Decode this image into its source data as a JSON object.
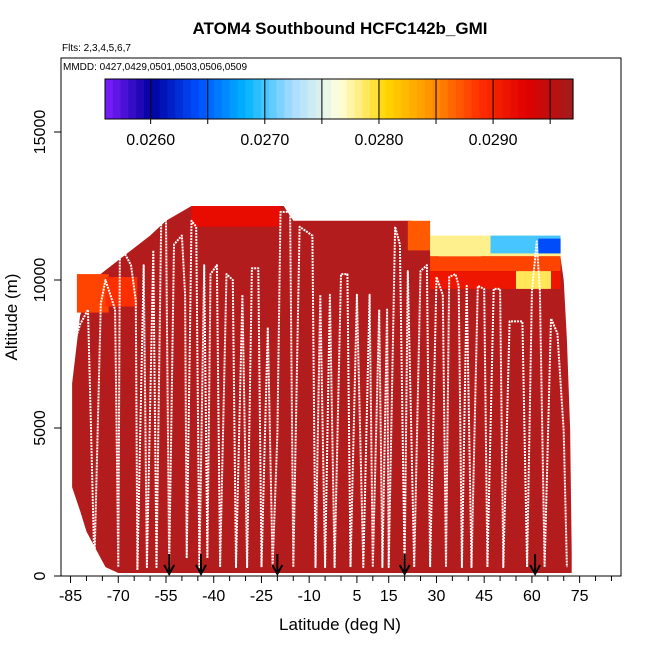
{
  "chart_data": {
    "type": "heatmap",
    "title": "ATOM4 Southbound HCFC142b_GMI",
    "subtitle_flights": "Flts: 2,3,4,5,6,7",
    "subtitle_dates": "MMDD: 0427,0429,0501,0503,0506,0509",
    "xlabel": "Latitude (deg N)",
    "ylabel": "Altitude (m)",
    "xlim": [
      -88,
      88
    ],
    "ylim": [
      0,
      17500
    ],
    "x_ticks": [
      -85,
      -70,
      -55,
      -40,
      -25,
      -10,
      5,
      15,
      30,
      45,
      60,
      75
    ],
    "x_tick_labels": [
      "-85",
      "-70",
      "-55",
      "-40",
      "-25",
      "-10",
      "5",
      "15",
      "30",
      "45",
      "60",
      "75"
    ],
    "y_ticks": [
      0,
      5000,
      10000,
      15000
    ],
    "y_tick_labels": [
      "0",
      "5000",
      "10000",
      "15000"
    ],
    "colorbar": {
      "range": [
        0.0256,
        0.0297
      ],
      "ticks": [
        0.026,
        0.027,
        0.028,
        0.029
      ],
      "tick_labels": [
        "0.0260",
        "0.0270",
        "0.0280",
        "0.0290"
      ],
      "colors": [
        "#7f1fff",
        "#00009f",
        "#0050ff",
        "#00b4ff",
        "#a8dcff",
        "#ffffe0",
        "#ffd700",
        "#ff9000",
        "#ff3000",
        "#e00000",
        "#a01c1c"
      ]
    },
    "curtain_top": [
      [
        -84.5,
        6500
      ],
      [
        -82,
        8800
      ],
      [
        -78,
        10000
      ],
      [
        -72,
        10500
      ],
      [
        -66,
        11000
      ],
      [
        -60,
        11500
      ],
      [
        -55,
        12000
      ],
      [
        -47,
        12500
      ],
      [
        -18,
        12500
      ],
      [
        -15,
        12000
      ],
      [
        22,
        12000
      ],
      [
        28,
        11000
      ],
      [
        35,
        10500
      ],
      [
        50,
        11000
      ],
      [
        68,
        11500
      ],
      [
        70,
        10000
      ],
      [
        71,
        8000
      ],
      [
        72,
        5000
      ],
      [
        72.5,
        800
      ]
    ],
    "curtain_bottom": [
      [
        -84.5,
        3000
      ],
      [
        -82,
        2200
      ],
      [
        -80,
        1500
      ],
      [
        -77,
        900
      ],
      [
        -74,
        300
      ],
      [
        -70,
        100
      ],
      [
        72.5,
        100
      ]
    ],
    "upper_bands": [
      {
        "x0": -83,
        "x1": -73,
        "y0": 8900,
        "y1": 10200,
        "value": 0.0288
      },
      {
        "x0": -74,
        "x1": -64,
        "y0": 9100,
        "y1": 10100,
        "value": 0.0289
      },
      {
        "x0": -47,
        "x1": -19,
        "y0": 11800,
        "y1": 12500,
        "value": 0.0292
      },
      {
        "x0": 21,
        "x1": 28,
        "y0": 11000,
        "y1": 12000,
        "value": 0.0287
      },
      {
        "x0": 28,
        "x1": 69,
        "y0": 10800,
        "y1": 11500,
        "value": 0.0278
      },
      {
        "x0": 47,
        "x1": 69,
        "y0": 10900,
        "y1": 11500,
        "value": 0.027
      },
      {
        "x0": 62,
        "x1": 69,
        "y0": 10900,
        "y1": 11400,
        "value": 0.0264
      },
      {
        "x0": 28,
        "x1": 69,
        "y0": 10300,
        "y1": 10800,
        "value": 0.0288
      },
      {
        "x0": 28,
        "x1": 69,
        "y0": 9700,
        "y1": 10300,
        "value": 0.0291
      },
      {
        "x0": 55,
        "x1": 66,
        "y0": 9700,
        "y1": 10300,
        "value": 0.0279
      }
    ],
    "flight_track": [
      [
        -84,
        7800
      ],
      [
        -82,
        8500
      ],
      [
        -79.5,
        9000
      ],
      [
        -77.5,
        400
      ],
      [
        -75.5,
        9200
      ],
      [
        -74,
        10000
      ],
      [
        -71,
        9000
      ],
      [
        -70,
        300
      ],
      [
        -69.5,
        11200
      ],
      [
        -66,
        10500
      ],
      [
        -64.5,
        9300
      ],
      [
        -64,
        200
      ],
      [
        -62,
        10500
      ],
      [
        -61,
        300
      ],
      [
        -59,
        11000
      ],
      [
        -58,
        300
      ],
      [
        -56.5,
        12000
      ],
      [
        -55,
        12000
      ],
      [
        -54,
        300
      ],
      [
        -52.5,
        11200
      ],
      [
        -50,
        11500
      ],
      [
        -49,
        9500
      ],
      [
        -48.5,
        600
      ],
      [
        -47.5,
        8000
      ],
      [
        -47,
        12000
      ],
      [
        -45.5,
        11800
      ],
      [
        -44.5,
        300
      ],
      [
        -43,
        10500
      ],
      [
        -42,
        600
      ],
      [
        -41,
        10200
      ],
      [
        -39,
        10500
      ],
      [
        -38,
        300
      ],
      [
        -36,
        10200
      ],
      [
        -34,
        10000
      ],
      [
        -33,
        300
      ],
      [
        -31,
        9500
      ],
      [
        -29.5,
        300
      ],
      [
        -28,
        10400
      ],
      [
        -26,
        10400
      ],
      [
        -25,
        300
      ],
      [
        -23,
        8400
      ],
      [
        -21.5,
        300
      ],
      [
        -20,
        4800
      ],
      [
        -19,
        12300
      ],
      [
        -16,
        12300
      ],
      [
        -15,
        300
      ],
      [
        -13,
        11800
      ],
      [
        -9,
        11500
      ],
      [
        -8,
        300
      ],
      [
        -6.5,
        9500
      ],
      [
        -5,
        300
      ],
      [
        -3.5,
        9500
      ],
      [
        -2,
        300
      ],
      [
        0,
        10200
      ],
      [
        2,
        10200
      ],
      [
        3,
        300
      ],
      [
        5,
        9500
      ],
      [
        7,
        300
      ],
      [
        9,
        9500
      ],
      [
        10,
        300
      ],
      [
        12,
        9000
      ],
      [
        13,
        300
      ],
      [
        14.5,
        9000
      ],
      [
        15,
        300
      ],
      [
        17,
        11800
      ],
      [
        18.5,
        11200
      ],
      [
        20,
        300
      ],
      [
        21,
        10300
      ],
      [
        23,
        300
      ],
      [
        25,
        10300
      ],
      [
        27,
        10500
      ],
      [
        28,
        300
      ],
      [
        30,
        10100
      ],
      [
        32,
        9500
      ],
      [
        33,
        300
      ],
      [
        34,
        10100
      ],
      [
        36,
        10200
      ],
      [
        37,
        9800
      ],
      [
        38,
        300
      ],
      [
        39.5,
        9800
      ],
      [
        41,
        300
      ],
      [
        43,
        9800
      ],
      [
        45,
        9700
      ],
      [
        46,
        300
      ],
      [
        48,
        9700
      ],
      [
        50,
        9700
      ],
      [
        51,
        300
      ],
      [
        53,
        8600
      ],
      [
        57,
        8600
      ],
      [
        58.5,
        300
      ],
      [
        60,
        9600
      ],
      [
        61.5,
        11300
      ],
      [
        62.5,
        9600
      ],
      [
        64,
        300
      ],
      [
        66,
        8700
      ],
      [
        68,
        8200
      ],
      [
        70,
        4900
      ],
      [
        71,
        300
      ]
    ],
    "arrows_x": [
      -54,
      -44,
      -20,
      20,
      61
    ]
  }
}
